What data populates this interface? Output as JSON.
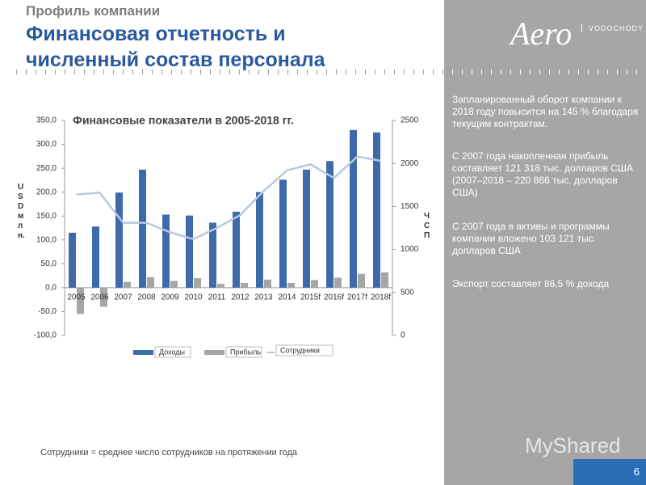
{
  "header": {
    "kicker": "Профиль компании",
    "title_line1": "Финансовая отчетность и",
    "title_line2": "численный состав персонала"
  },
  "logo": {
    "mark": "Aero",
    "brand": "VODOCHODY"
  },
  "notes": [
    "Запланированный оборот компании к 2018 году повысится на 145 % благодаря текущим контрактам.",
    "С 2007 года накопленная прибыль составляет 121 318 тыс. долларов США (2007–2018 – 220 866 тыс. долларов США)",
    "С 2007 года в активы и программы компании вложено 103 121 тыс. долларов США",
    "Экспорт составляет 86,5 % дохода"
  ],
  "footnote": "Сотрудники = среднее число сотрудников на протяжении года",
  "page_number": "6",
  "watermark": "MyShared",
  "chart_data": {
    "type": "bar",
    "title": "Финансовые показатели в 2005-2018 гг.",
    "y_label": "USD млн.",
    "y2_label": "ЧСП",
    "categories": [
      "2005",
      "2006",
      "2007",
      "2008",
      "2009",
      "2010",
      "2011",
      "2012",
      "2013",
      "2014",
      "2015f",
      "2016f",
      "2017f",
      "2018f"
    ],
    "series": [
      {
        "name": "Доходы",
        "color": "#3d6aa8",
        "values": [
          115,
          128,
          199,
          247,
          153,
          151,
          136,
          159,
          200,
          226,
          247,
          265,
          330,
          325
        ]
      },
      {
        "name": "Прибыль",
        "color": "#a6a6a6",
        "values": [
          -55,
          -40,
          12,
          22,
          14,
          20,
          8,
          10,
          17,
          10,
          16,
          21,
          29,
          32
        ]
      },
      {
        "name": "Сотрудники",
        "color": "#b8c8e0",
        "type": "line",
        "axis": "y2",
        "values": [
          1640,
          1660,
          1310,
          1310,
          1200,
          1120,
          1250,
          1400,
          1680,
          1920,
          1990,
          1830,
          2080,
          2030
        ]
      }
    ],
    "ylim": [
      -100,
      350
    ],
    "yticks": [
      {
        "value": -100,
        "label": "-100,0"
      },
      {
        "value": -50,
        "label": "-50,0"
      },
      {
        "value": 0,
        "label": "0,0"
      },
      {
        "value": 50,
        "label": "50,0"
      },
      {
        "value": 100,
        "label": "100,0"
      },
      {
        "value": 150,
        "label": "150,0"
      },
      {
        "value": 200,
        "label": "200,0"
      },
      {
        "value": 250,
        "label": "250,0"
      },
      {
        "value": 300,
        "label": "300,0"
      },
      {
        "value": 350,
        "label": "350,0"
      }
    ],
    "y2lim": [
      0,
      2500
    ],
    "y2ticks": [
      0,
      500,
      1000,
      1500,
      2000,
      2500
    ]
  }
}
